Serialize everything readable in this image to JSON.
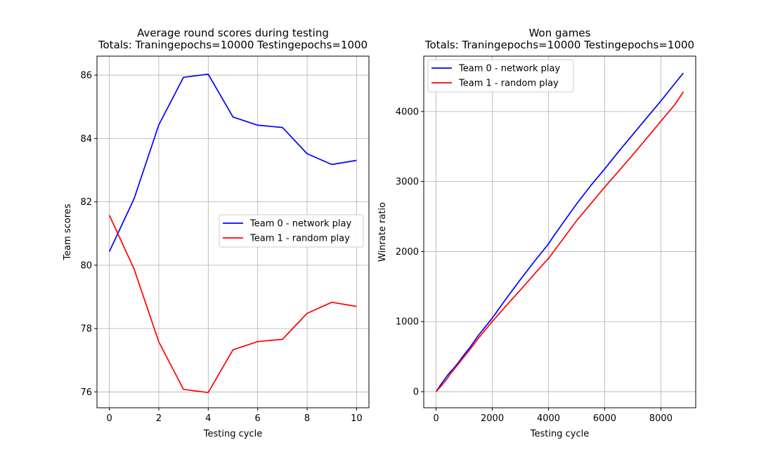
{
  "chart_data": [
    {
      "type": "line",
      "title": "Average round scores during testing",
      "subtitle": "Totals: Traningepochs=10000 Testingepochs=1000",
      "xlabel": "Testing cycle",
      "ylabel": "Team scores",
      "xlim": [
        -0.5,
        10.5
      ],
      "ylim": [
        75.5,
        86.6
      ],
      "xticks": [
        0,
        2,
        4,
        6,
        8,
        10
      ],
      "yticks": [
        76,
        78,
        80,
        82,
        84,
        86
      ],
      "grid": true,
      "legend_position": "center-right",
      "x": [
        0,
        1,
        2,
        3,
        4,
        5,
        6,
        7,
        8,
        9,
        10
      ],
      "series": [
        {
          "name": "Team 0 - network play",
          "color": "#0000ff",
          "values": [
            80.43,
            82.1,
            84.43,
            85.93,
            86.03,
            84.68,
            84.42,
            84.35,
            83.52,
            83.18,
            83.31
          ]
        },
        {
          "name": "Team 1 - random play",
          "color": "#ff0000",
          "values": [
            81.58,
            79.88,
            77.58,
            76.08,
            75.98,
            77.33,
            77.59,
            77.66,
            78.48,
            78.83,
            78.7
          ]
        }
      ]
    },
    {
      "type": "line",
      "title": "Won games",
      "subtitle": "Totals: Traningepochs=10000 Testingepochs=1000",
      "xlabel": "Testing cycle",
      "ylabel": "Winrate ratio",
      "xlim": [
        -440,
        9240
      ],
      "ylim": [
        -230,
        4790
      ],
      "xticks": [
        0,
        2000,
        4000,
        6000,
        8000
      ],
      "yticks": [
        0,
        1000,
        2000,
        3000,
        4000
      ],
      "grid": true,
      "legend_position": "top-left",
      "x": [
        0,
        200,
        400,
        500,
        600,
        800,
        1000,
        1200,
        1500,
        2000,
        2500,
        3000,
        3500,
        3900,
        4000,
        4200,
        4500,
        5000,
        5500,
        6000,
        6500,
        7000,
        7500,
        8000,
        8500,
        8800
      ],
      "series": [
        {
          "name": "Team 0 - network play",
          "color": "#0000ff",
          "values": [
            0,
            120,
            230,
            280,
            320,
            420,
            530,
            630,
            800,
            1050,
            1330,
            1600,
            1860,
            2060,
            2110,
            2230,
            2400,
            2680,
            2940,
            3180,
            3430,
            3670,
            3910,
            4150,
            4400,
            4550
          ]
        },
        {
          "name": "Team 1 - random play",
          "color": "#ff0000",
          "values": [
            0,
            90,
            190,
            250,
            300,
            400,
            500,
            600,
            760,
            1000,
            1230,
            1450,
            1680,
            1860,
            1900,
            2010,
            2170,
            2440,
            2680,
            2920,
            3150,
            3380,
            3620,
            3860,
            4100,
            4280
          ]
        }
      ]
    }
  ]
}
